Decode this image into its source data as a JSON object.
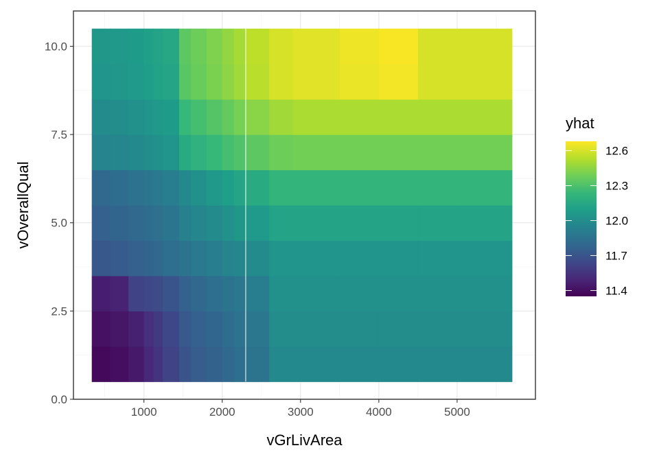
{
  "chart_data": {
    "type": "heatmap",
    "xlabel": "vGrLivArea",
    "ylabel": "vOverallQual",
    "xlim": [
      100,
      6000
    ],
    "ylim": [
      0,
      11
    ],
    "x_ticks": [
      1000,
      2000,
      3000,
      4000,
      5000
    ],
    "x_tick_labels": [
      "1000",
      "2000",
      "3000",
      "4000",
      "5000"
    ],
    "y_ticks": [
      0,
      2.5,
      5,
      7.5,
      10
    ],
    "y_tick_labels": [
      "0.0",
      "2.5",
      "5.0",
      "7.5",
      "10.0"
    ],
    "x_bins": [
      334,
      568,
      802,
      1000,
      1120,
      1240,
      1450,
      1600,
      1800,
      2000,
      2150,
      2300,
      2600,
      2900,
      3500,
      4000,
      4500,
      5000,
      5700
    ],
    "x_start": 334,
    "y_values": [
      1,
      2,
      3,
      4,
      5,
      6,
      7,
      8,
      9,
      10
    ],
    "grid": true,
    "legend": {
      "title": "yhat",
      "position": "right",
      "ticks": [
        11.4,
        11.7,
        12.0,
        12.3,
        12.6
      ],
      "tick_labels": [
        "11.4",
        "11.7",
        "12.0",
        "12.3",
        "12.6"
      ],
      "range": [
        11.35,
        12.68
      ]
    },
    "colormap": "viridis",
    "colors": [
      "#440154",
      "#482878",
      "#3e4989",
      "#31688e",
      "#26828e",
      "#1f9e89",
      "#35b779",
      "#6ece58",
      "#b5de2b",
      "#fde725"
    ],
    "values": [
      [
        11.38,
        11.4,
        11.44,
        11.5,
        11.55,
        11.62,
        11.7,
        11.74,
        11.77,
        11.8,
        11.83,
        11.86,
        11.98,
        11.98,
        11.98,
        11.98,
        11.98,
        11.98
      ],
      [
        11.41,
        11.43,
        11.47,
        11.53,
        11.58,
        11.64,
        11.72,
        11.76,
        11.79,
        11.82,
        11.85,
        11.88,
        12.0,
        12.0,
        12.0,
        12.0,
        12.0,
        12.0
      ],
      [
        11.46,
        11.48,
        11.62,
        11.64,
        11.66,
        11.7,
        11.76,
        11.8,
        11.83,
        11.86,
        11.88,
        11.91,
        12.02,
        12.02,
        12.02,
        12.02,
        12.02,
        12.02
      ],
      [
        11.71,
        11.73,
        11.76,
        11.78,
        11.8,
        11.83,
        11.86,
        11.89,
        11.92,
        11.95,
        11.97,
        11.99,
        12.04,
        12.04,
        12.04,
        12.04,
        12.04,
        12.04
      ],
      [
        11.76,
        11.78,
        11.8,
        11.82,
        11.84,
        11.87,
        11.93,
        11.96,
        11.99,
        12.02,
        12.05,
        12.07,
        12.12,
        12.12,
        12.12,
        12.12,
        12.12,
        12.12
      ],
      [
        11.8,
        11.82,
        11.85,
        11.87,
        11.89,
        11.92,
        11.98,
        12.02,
        12.06,
        12.09,
        12.13,
        12.16,
        12.22,
        12.22,
        12.22,
        12.22,
        12.22,
        12.22
      ],
      [
        11.95,
        11.96,
        11.98,
        12.0,
        12.02,
        12.04,
        12.16,
        12.2,
        12.24,
        12.28,
        12.31,
        12.34,
        12.38,
        12.39,
        12.39,
        12.39,
        12.39,
        12.39
      ],
      [
        11.99,
        12.0,
        12.02,
        12.04,
        12.06,
        12.08,
        12.24,
        12.28,
        12.32,
        12.36,
        12.4,
        12.44,
        12.49,
        12.51,
        12.51,
        12.51,
        12.51,
        12.51
      ],
      [
        12.04,
        12.05,
        12.07,
        12.09,
        12.11,
        12.13,
        12.33,
        12.37,
        12.41,
        12.45,
        12.49,
        12.54,
        12.6,
        12.62,
        12.64,
        12.66,
        12.6,
        12.6
      ],
      [
        12.05,
        12.06,
        12.08,
        12.1,
        12.12,
        12.14,
        12.34,
        12.38,
        12.42,
        12.46,
        12.5,
        12.55,
        12.6,
        12.62,
        12.65,
        12.67,
        12.6,
        12.6
      ]
    ]
  }
}
